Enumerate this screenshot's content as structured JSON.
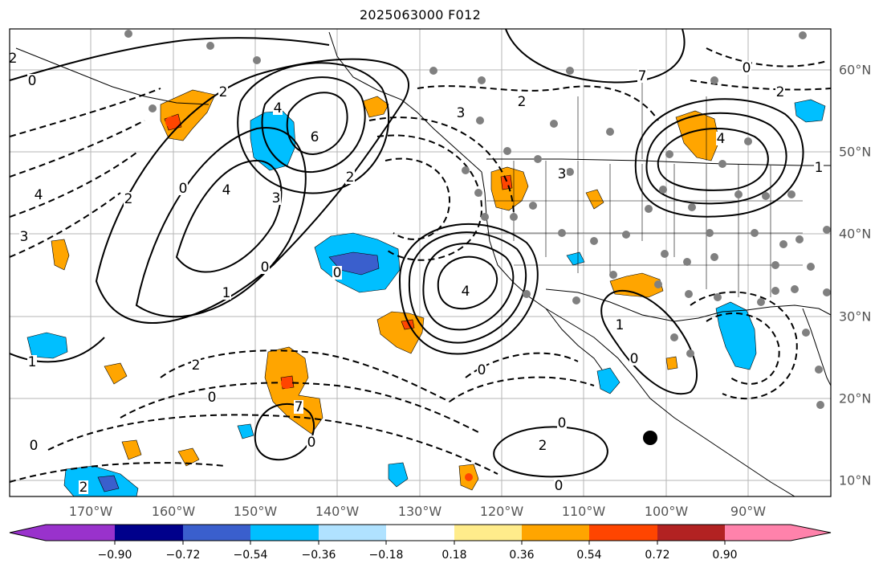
{
  "title": "2025063000 F012",
  "lon_labels": [
    "170°W",
    "160°W",
    "150°W",
    "140°W",
    "130°W",
    "120°W",
    "110°W",
    "100°W",
    "90°W"
  ],
  "lat_labels": [
    "60°N",
    "50°N",
    "40°N",
    "30°N",
    "20°N",
    "10°N"
  ],
  "contour_labels": [
    "4",
    "6",
    "2",
    "4",
    "3",
    "2",
    "2",
    "0",
    "0",
    "4",
    "3",
    "1",
    "2",
    "0",
    "2",
    "3",
    "0",
    "0",
    "0",
    "0",
    "3",
    "7",
    "1",
    "0",
    "2",
    "4",
    "2",
    "0",
    "1",
    "1",
    "7",
    "0",
    "4",
    "2",
    "0",
    "0",
    "2"
  ],
  "colorbar": {
    "tick_labels": [
      "−0.90",
      "−0.72",
      "−0.54",
      "−0.36",
      "−0.18",
      "0.18",
      "0.36",
      "0.54",
      "0.72",
      "0.90"
    ],
    "colors": [
      "#9932cc",
      "#00008b",
      "#3a5fcd",
      "#00bfff",
      "#b0e2ff",
      "#ffffff",
      "#ffec8b",
      "#ffa500",
      "#ff4500",
      "#b22222",
      "#ff82ab"
    ]
  },
  "markers": {
    "station_color": "#808080",
    "storm_center_color": "#000000"
  }
}
